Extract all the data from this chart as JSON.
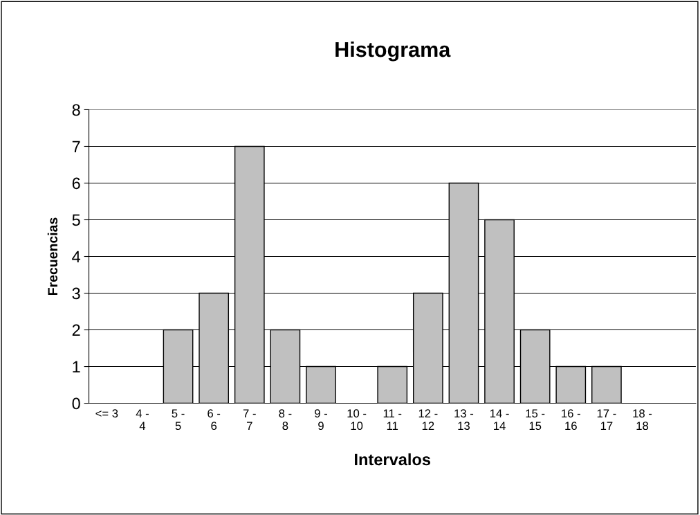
{
  "chart_data": {
    "type": "bar",
    "title": "Histograma",
    "xlabel": "Intervalos",
    "ylabel": "Frecuencias",
    "categories": [
      "<= 3",
      "4 - 4",
      "5 - 5",
      "6 - 6",
      "7 - 7",
      "8 - 8",
      "9 - 9",
      "10 - 10",
      "11 - 11",
      "12 - 12",
      "13 - 13",
      "14 - 14",
      "15 - 15",
      "16 - 16",
      "17 - 17",
      "18 - 18",
      null
    ],
    "values": [
      0,
      0,
      2,
      3,
      7,
      2,
      1,
      0,
      1,
      3,
      6,
      5,
      2,
      1,
      1,
      0,
      0
    ],
    "color": "#c0c0c0",
    "ylim": [
      0,
      8
    ],
    "yticks": [
      0,
      1,
      2,
      3,
      4,
      5,
      6,
      7,
      8
    ],
    "grid": "y"
  }
}
